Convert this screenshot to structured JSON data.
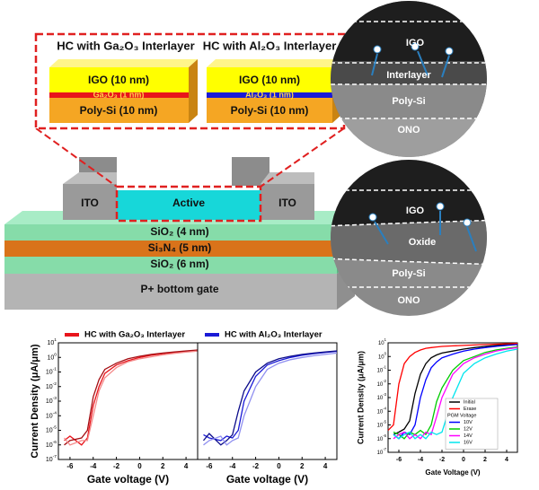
{
  "schematic": {
    "inset_left_title": "HC with Ga₂O₃ Interlayer",
    "inset_right_title": "HC with Al₂O₃ Interlayer",
    "left_stack": [
      "IGO (10 nm)",
      "Ga₂O₃ (1 nm)",
      "Poly-Si (10 nm)"
    ],
    "right_stack": [
      "IGO (10 nm)",
      "Al₂O₃ (1 nm)",
      "Poly-Si (10 nm)"
    ],
    "device": {
      "ito_left": "ITO",
      "active": "Active",
      "ito_right": "ITO",
      "layers": [
        "SiO₂ (4 nm)",
        "Si₃N₄ (5 nm)",
        "SiO₂ (6 nm)",
        "P+ bottom gate"
      ]
    }
  },
  "tem": [
    {
      "labels": [
        "IGO",
        "Interlayer",
        "Poly-Si",
        "ONO"
      ]
    },
    {
      "labels": [
        "IGO",
        "Oxide",
        "Poly-Si",
        "ONO"
      ]
    }
  ],
  "chart_data": [
    {
      "type": "line",
      "legend_label": "HC with Ga₂O₃ Interlayer",
      "legend_color": "#e8141b",
      "ylabel": "Current Density (μA/μm)",
      "xlabel": "Gate voltage (V)",
      "log_y": true,
      "x": [
        -6.5,
        -6,
        -5,
        -4.5,
        -4,
        -3.5,
        -3,
        -2,
        -1,
        0,
        1,
        2,
        3,
        4,
        5
      ],
      "series": [
        {
          "color": "#e8141b",
          "values": [
            2e-06,
            4e-06,
            1e-06,
            3e-06,
            0.0005,
            0.01,
            0.08,
            0.3,
            0.6,
            1,
            1.4,
            1.8,
            2.2,
            2.6,
            3
          ]
        },
        {
          "color": "#a40d12",
          "values": [
            1e-06,
            2e-06,
            3e-06,
            1e-05,
            0.002,
            0.03,
            0.15,
            0.4,
            0.8,
            1.2,
            1.6,
            2,
            2.4,
            2.8,
            3.2
          ]
        },
        {
          "color": "#f48a8a",
          "values": [
            3e-06,
            1e-06,
            2e-06,
            2e-06,
            0.0001,
            0.005,
            0.04,
            0.2,
            0.5,
            0.8,
            1.1,
            1.5,
            1.9,
            2.3,
            2.7
          ]
        }
      ],
      "xlim": [
        -7,
        5
      ],
      "xticks": [
        -6,
        -4,
        -2,
        0,
        2,
        4
      ],
      "ylim": [
        1e-07,
        10
      ],
      "yticks": [
        {
          "value": 1e-07,
          "label": "10^-7"
        },
        {
          "value": 1e-06,
          "label": "10^-6"
        },
        {
          "value": 1e-05,
          "label": "10^-5"
        },
        {
          "value": 0.0001,
          "label": "10^-4"
        },
        {
          "value": 0.001,
          "label": "10^-3"
        },
        {
          "value": 0.01,
          "label": "10^-2"
        },
        {
          "value": 0.1,
          "label": "10^-1"
        },
        {
          "value": 1,
          "label": "10^0"
        },
        {
          "value": 10,
          "label": "10^1"
        }
      ]
    },
    {
      "type": "line",
      "legend_label": "HC with Al₂O₃ Interlayer",
      "legend_color": "#1a1ad6",
      "xlabel": "Gate voltage (V)",
      "log_y": true,
      "x": [
        -6.5,
        -6,
        -5,
        -4.5,
        -4,
        -3.5,
        -3,
        -2,
        -1,
        0,
        1,
        2,
        3,
        4,
        5
      ],
      "series": [
        {
          "color": "#1a1ad6",
          "values": [
            5e-06,
            3e-06,
            2e-06,
            4e-06,
            3e-06,
            1e-05,
            0.001,
            0.05,
            0.3,
            0.6,
            1,
            1.4,
            1.8,
            2.2,
            2.6
          ]
        },
        {
          "color": "#0b0b8a",
          "values": [
            2e-06,
            6e-06,
            1e-06,
            2e-06,
            5e-06,
            0.0002,
            0.005,
            0.1,
            0.4,
            0.8,
            1.2,
            1.6,
            2,
            2.4,
            2.8
          ]
        },
        {
          "color": "#8f8ff0",
          "values": [
            1e-06,
            2e-06,
            4e-06,
            1e-06,
            2e-06,
            3e-06,
            0.0001,
            0.01,
            0.15,
            0.4,
            0.7,
            1,
            1.3,
            1.6,
            2
          ]
        }
      ],
      "xlim": [
        -7,
        5
      ],
      "xticks": [
        -6,
        -4,
        -2,
        0,
        2,
        4
      ],
      "ylim": [
        1e-07,
        10
      ]
    },
    {
      "type": "line",
      "ylabel": "Current Density (μA/μm)",
      "xlabel": "Gate Voltage (V)",
      "log_y": true,
      "legend_title": "PGM Voltage",
      "x": [
        -7,
        -6.5,
        -6,
        -5.5,
        -5,
        -4.5,
        -4,
        -3.5,
        -3,
        -2.5,
        -2,
        -1,
        0,
        1,
        2,
        3,
        4,
        5
      ],
      "series": [
        {
          "name": "Initial",
          "color": "#000000",
          "values": [
            null,
            2e-06,
            3e-06,
            5e-06,
            2e-05,
            0.002,
            0.05,
            0.3,
            0.8,
            1.3,
            1.8,
            2.5,
            3.5,
            4.5,
            5.5,
            6.5,
            7.5,
            8.5
          ]
        },
        {
          "name": "Erase",
          "color": "#ff0000",
          "values": [
            4e-06,
            1e-05,
            0.01,
            0.3,
            1,
            2,
            3,
            4,
            4.5,
            5,
            5.5,
            6,
            6.5,
            7,
            7.5,
            8,
            8.5,
            9
          ]
        },
        {
          "name": "10V",
          "color": "#0000ff",
          "values": [
            null,
            2e-06,
            1e-06,
            3e-06,
            2e-06,
            1e-05,
            0.001,
            0.02,
            0.15,
            0.4,
            0.8,
            1.5,
            2.5,
            3.5,
            4.5,
            5.5,
            6.5,
            7.5
          ]
        },
        {
          "name": "12V",
          "color": "#00cc00",
          "values": [
            null,
            3e-06,
            2e-06,
            1e-06,
            3e-06,
            2e-06,
            4e-06,
            2e-06,
            1e-05,
            0.0005,
            0.005,
            0.1,
            0.5,
            1,
            2,
            3,
            4,
            5
          ]
        },
        {
          "name": "14V",
          "color": "#ff00ff",
          "values": [
            null,
            1e-06,
            2e-06,
            3e-06,
            1e-06,
            2e-06,
            1e-06,
            3e-06,
            2e-06,
            4e-05,
            0.001,
            0.05,
            0.3,
            0.8,
            1.5,
            2.5,
            3.5,
            4.5
          ]
        },
        {
          "name": "16V",
          "color": "#00e5ee",
          "values": [
            null,
            2e-06,
            1e-06,
            2e-06,
            3e-06,
            1e-06,
            2e-06,
            1e-06,
            3e-06,
            2e-06,
            3e-06,
            0.001,
            0.06,
            0.3,
            0.8,
            1.5,
            2.5,
            3.5
          ]
        }
      ],
      "xlim": [
        -7,
        5
      ],
      "xticks": [
        -6,
        -4,
        -2,
        0,
        2,
        4
      ],
      "ylim": [
        1e-07,
        10
      ],
      "yticks": [
        {
          "value": 1e-07,
          "label": "10^-7"
        },
        {
          "value": 1e-06,
          "label": "10^-6"
        },
        {
          "value": 1e-05,
          "label": "10^-5"
        },
        {
          "value": 0.0001,
          "label": "10^-4"
        },
        {
          "value": 0.001,
          "label": "10^-3"
        },
        {
          "value": 0.01,
          "label": "10^-2"
        },
        {
          "value": 0.1,
          "label": "10^-1"
        },
        {
          "value": 1,
          "label": "10^0"
        },
        {
          "value": 10,
          "label": "10^1"
        }
      ]
    }
  ]
}
